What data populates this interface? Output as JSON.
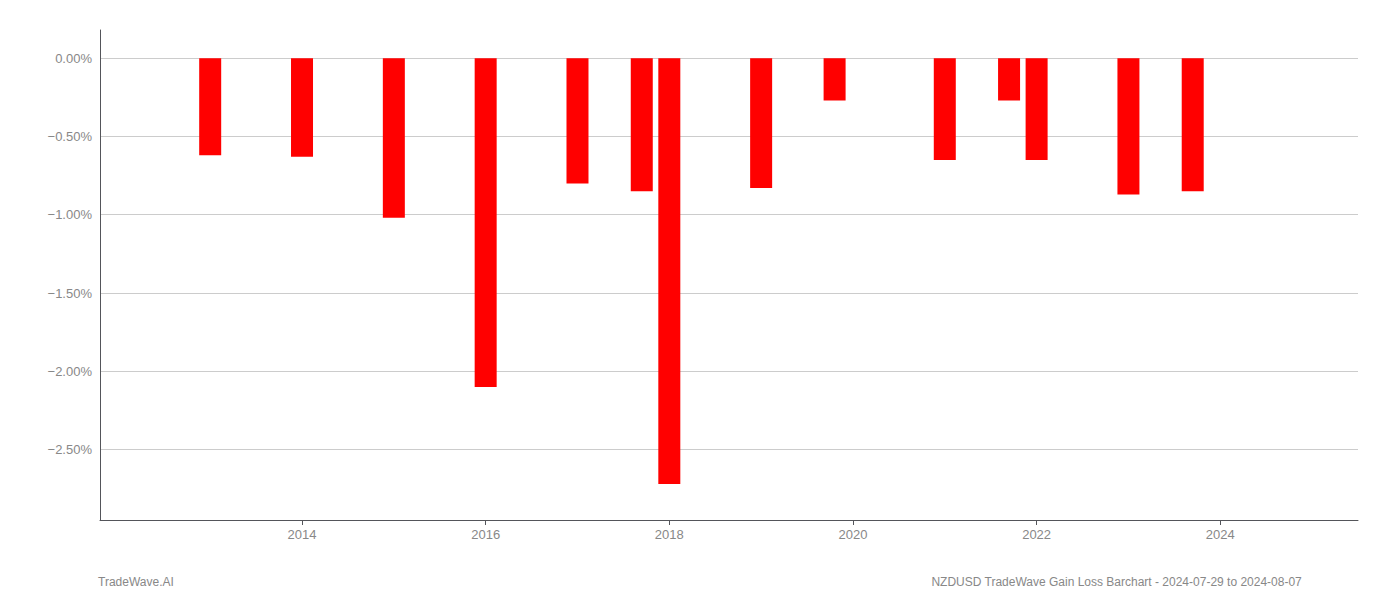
{
  "chart_data": {
    "type": "bar",
    "x": [
      2013,
      2014,
      2015,
      2016,
      2017,
      2017.7,
      2018,
      2019,
      2019.8,
      2021,
      2021.7,
      2022,
      2023,
      2023.7
    ],
    "values": [
      -0.62,
      -0.63,
      -1.02,
      -2.1,
      -0.8,
      -0.85,
      -2.72,
      -0.83,
      -0.27,
      -0.65,
      -0.27,
      -0.65,
      -0.87,
      -0.85
    ],
    "color": "#ff0000",
    "xlim": [
      2011.8,
      2025.5
    ],
    "xticks": [
      2014,
      2016,
      2018,
      2020,
      2022,
      2024
    ],
    "ylim": [
      -2.95,
      0.18
    ],
    "yticks": [
      {
        "value": 0.0,
        "label": "0.00%"
      },
      {
        "value": -0.5,
        "label": "−0.50%"
      },
      {
        "value": -1.0,
        "label": "−1.00%"
      },
      {
        "value": -1.5,
        "label": "−1.50%"
      },
      {
        "value": -2.0,
        "label": "−2.00%"
      },
      {
        "value": -2.5,
        "label": "−2.50%"
      }
    ],
    "grid": true,
    "annotations": [
      "TradeWave.AI",
      "NZDUSD TradeWave Gain Loss Barchart - 2024-07-29 to 2024-08-07"
    ]
  }
}
